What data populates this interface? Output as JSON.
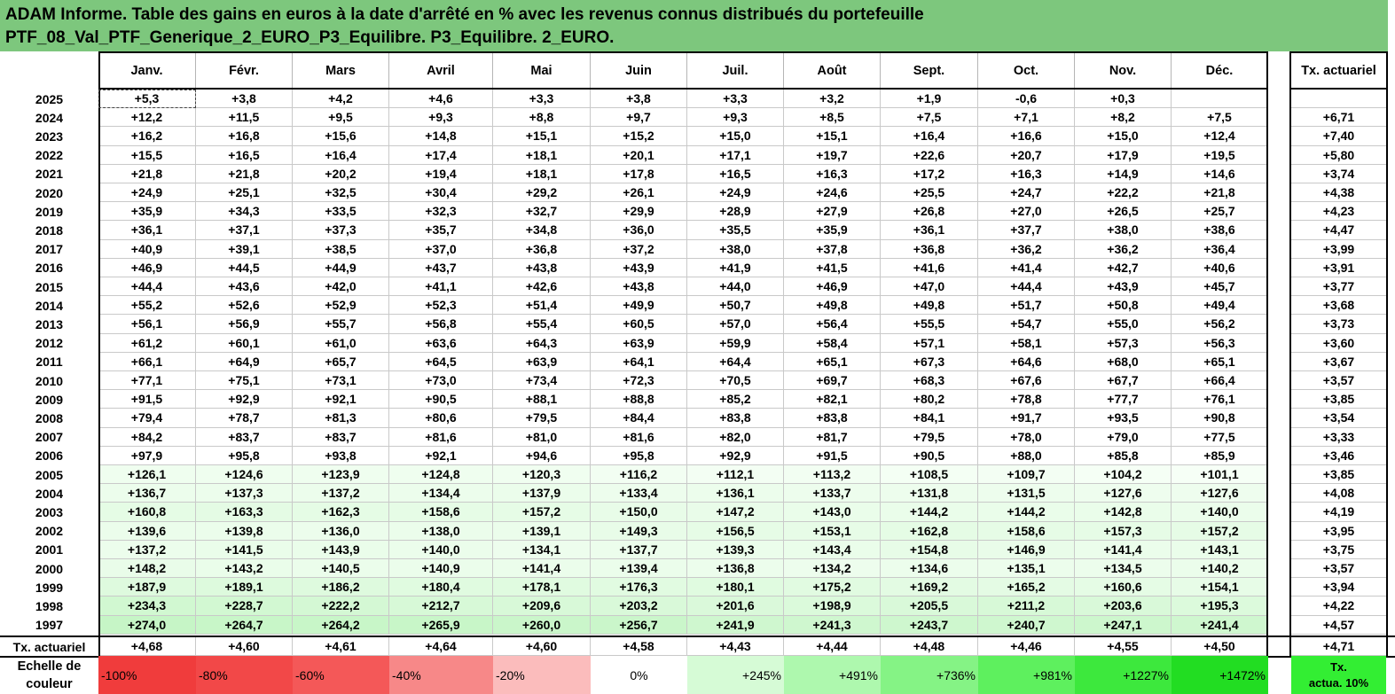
{
  "title": {
    "line1": "ADAM Informe. Table des gains en euros à la date d'arrêté en % avec les revenus connus distribués du portefeuille",
    "line2": "PTF_08_Val_PTF_Generique_2_EURO_P3_Equilibre. P3_Equilibre. 2_EURO."
  },
  "months": [
    "Janv.",
    "Févr.",
    "Mars",
    "Avril",
    "Mai",
    "Juin",
    "Juil.",
    "Août",
    "Sept.",
    "Oct.",
    "Nov.",
    "Déc."
  ],
  "tx_header": "Tx. actuariel",
  "rows": [
    {
      "year": "2025",
      "v": [
        "+5,3",
        "+3,8",
        "+4,2",
        "+4,6",
        "+3,3",
        "+3,8",
        "+3,3",
        "+3,2",
        "+1,9",
        "-0,6",
        "+0,3",
        ""
      ],
      "tx": ""
    },
    {
      "year": "2024",
      "v": [
        "+12,2",
        "+11,5",
        "+9,5",
        "+9,3",
        "+8,8",
        "+9,7",
        "+9,3",
        "+8,5",
        "+7,5",
        "+7,1",
        "+8,2",
        "+7,5"
      ],
      "tx": "+6,71"
    },
    {
      "year": "2023",
      "v": [
        "+16,2",
        "+16,8",
        "+15,6",
        "+14,8",
        "+15,1",
        "+15,2",
        "+15,0",
        "+15,1",
        "+16,4",
        "+16,6",
        "+15,0",
        "+12,4"
      ],
      "tx": "+7,40"
    },
    {
      "year": "2022",
      "v": [
        "+15,5",
        "+16,5",
        "+16,4",
        "+17,4",
        "+18,1",
        "+20,1",
        "+17,1",
        "+19,7",
        "+22,6",
        "+20,7",
        "+17,9",
        "+19,5"
      ],
      "tx": "+5,80"
    },
    {
      "year": "2021",
      "v": [
        "+21,8",
        "+21,8",
        "+20,2",
        "+19,4",
        "+18,1",
        "+17,8",
        "+16,5",
        "+16,3",
        "+17,2",
        "+16,3",
        "+14,9",
        "+14,6"
      ],
      "tx": "+3,74"
    },
    {
      "year": "2020",
      "v": [
        "+24,9",
        "+25,1",
        "+32,5",
        "+30,4",
        "+29,2",
        "+26,1",
        "+24,9",
        "+24,6",
        "+25,5",
        "+24,7",
        "+22,2",
        "+21,8"
      ],
      "tx": "+4,38"
    },
    {
      "year": "2019",
      "v": [
        "+35,9",
        "+34,3",
        "+33,5",
        "+32,3",
        "+32,7",
        "+29,9",
        "+28,9",
        "+27,9",
        "+26,8",
        "+27,0",
        "+26,5",
        "+25,7"
      ],
      "tx": "+4,23"
    },
    {
      "year": "2018",
      "v": [
        "+36,1",
        "+37,1",
        "+37,3",
        "+35,7",
        "+34,8",
        "+36,0",
        "+35,5",
        "+35,9",
        "+36,1",
        "+37,7",
        "+38,0",
        "+38,6"
      ],
      "tx": "+4,47"
    },
    {
      "year": "2017",
      "v": [
        "+40,9",
        "+39,1",
        "+38,5",
        "+37,0",
        "+36,8",
        "+37,2",
        "+38,0",
        "+37,8",
        "+36,8",
        "+36,2",
        "+36,2",
        "+36,4"
      ],
      "tx": "+3,99"
    },
    {
      "year": "2016",
      "v": [
        "+46,9",
        "+44,5",
        "+44,9",
        "+43,7",
        "+43,8",
        "+43,9",
        "+41,9",
        "+41,5",
        "+41,6",
        "+41,4",
        "+42,7",
        "+40,6"
      ],
      "tx": "+3,91"
    },
    {
      "year": "2015",
      "v": [
        "+44,4",
        "+43,6",
        "+42,0",
        "+41,1",
        "+42,6",
        "+43,8",
        "+44,0",
        "+46,9",
        "+47,0",
        "+44,4",
        "+43,9",
        "+45,7"
      ],
      "tx": "+3,77"
    },
    {
      "year": "2014",
      "v": [
        "+55,2",
        "+52,6",
        "+52,9",
        "+52,3",
        "+51,4",
        "+49,9",
        "+50,7",
        "+49,8",
        "+49,8",
        "+51,7",
        "+50,8",
        "+49,4"
      ],
      "tx": "+3,68"
    },
    {
      "year": "2013",
      "v": [
        "+56,1",
        "+56,9",
        "+55,7",
        "+56,8",
        "+55,4",
        "+60,5",
        "+57,0",
        "+56,4",
        "+55,5",
        "+54,7",
        "+55,0",
        "+56,2"
      ],
      "tx": "+3,73"
    },
    {
      "year": "2012",
      "v": [
        "+61,2",
        "+60,1",
        "+61,0",
        "+63,6",
        "+64,3",
        "+63,9",
        "+59,9",
        "+58,4",
        "+57,1",
        "+58,1",
        "+57,3",
        "+56,3"
      ],
      "tx": "+3,60"
    },
    {
      "year": "2011",
      "v": [
        "+66,1",
        "+64,9",
        "+65,7",
        "+64,5",
        "+63,9",
        "+64,1",
        "+64,4",
        "+65,1",
        "+67,3",
        "+64,6",
        "+68,0",
        "+65,1"
      ],
      "tx": "+3,67"
    },
    {
      "year": "2010",
      "v": [
        "+77,1",
        "+75,1",
        "+73,1",
        "+73,0",
        "+73,4",
        "+72,3",
        "+70,5",
        "+69,7",
        "+68,3",
        "+67,6",
        "+67,7",
        "+66,4"
      ],
      "tx": "+3,57"
    },
    {
      "year": "2009",
      "v": [
        "+91,5",
        "+92,9",
        "+92,1",
        "+90,5",
        "+88,1",
        "+88,8",
        "+85,2",
        "+82,1",
        "+80,2",
        "+78,8",
        "+77,7",
        "+76,1"
      ],
      "tx": "+3,85"
    },
    {
      "year": "2008",
      "v": [
        "+79,4",
        "+78,7",
        "+81,3",
        "+80,6",
        "+79,5",
        "+84,4",
        "+83,8",
        "+83,8",
        "+84,1",
        "+91,7",
        "+93,5",
        "+90,8"
      ],
      "tx": "+3,54"
    },
    {
      "year": "2007",
      "v": [
        "+84,2",
        "+83,7",
        "+83,7",
        "+81,6",
        "+81,0",
        "+81,6",
        "+82,0",
        "+81,7",
        "+79,5",
        "+78,0",
        "+79,0",
        "+77,5"
      ],
      "tx": "+3,33"
    },
    {
      "year": "2006",
      "v": [
        "+97,9",
        "+95,8",
        "+93,8",
        "+92,1",
        "+94,6",
        "+95,8",
        "+92,9",
        "+91,5",
        "+90,5",
        "+88,0",
        "+85,8",
        "+85,9"
      ],
      "tx": "+3,46"
    },
    {
      "year": "2005",
      "v": [
        "+126,1",
        "+124,6",
        "+123,9",
        "+124,8",
        "+120,3",
        "+116,2",
        "+112,1",
        "+113,2",
        "+108,5",
        "+109,7",
        "+104,2",
        "+101,1"
      ],
      "tx": "+3,85"
    },
    {
      "year": "2004",
      "v": [
        "+136,7",
        "+137,3",
        "+137,2",
        "+134,4",
        "+137,9",
        "+133,4",
        "+136,1",
        "+133,7",
        "+131,8",
        "+131,5",
        "+127,6",
        "+127,6"
      ],
      "tx": "+4,08"
    },
    {
      "year": "2003",
      "v": [
        "+160,8",
        "+163,3",
        "+162,3",
        "+158,6",
        "+157,2",
        "+150,0",
        "+147,2",
        "+143,0",
        "+144,2",
        "+144,2",
        "+142,8",
        "+140,0"
      ],
      "tx": "+4,19"
    },
    {
      "year": "2002",
      "v": [
        "+139,6",
        "+139,8",
        "+136,0",
        "+138,0",
        "+139,1",
        "+149,3",
        "+156,5",
        "+153,1",
        "+162,8",
        "+158,6",
        "+157,3",
        "+157,2"
      ],
      "tx": "+3,95"
    },
    {
      "year": "2001",
      "v": [
        "+137,2",
        "+141,5",
        "+143,9",
        "+140,0",
        "+134,1",
        "+137,7",
        "+139,3",
        "+143,4",
        "+154,8",
        "+146,9",
        "+141,4",
        "+143,1"
      ],
      "tx": "+3,75"
    },
    {
      "year": "2000",
      "v": [
        "+148,2",
        "+143,2",
        "+140,5",
        "+140,9",
        "+141,4",
        "+139,4",
        "+136,8",
        "+134,2",
        "+134,6",
        "+135,1",
        "+134,5",
        "+140,2"
      ],
      "tx": "+3,57"
    },
    {
      "year": "1999",
      "v": [
        "+187,9",
        "+189,1",
        "+186,2",
        "+180,4",
        "+178,1",
        "+176,3",
        "+180,1",
        "+175,2",
        "+169,2",
        "+165,2",
        "+160,6",
        "+154,1"
      ],
      "tx": "+3,94"
    },
    {
      "year": "1998",
      "v": [
        "+234,3",
        "+228,7",
        "+222,2",
        "+212,7",
        "+209,6",
        "+203,2",
        "+201,6",
        "+198,9",
        "+205,5",
        "+211,2",
        "+203,6",
        "+195,3"
      ],
      "tx": "+4,22"
    },
    {
      "year": "1997",
      "v": [
        "+274,0",
        "+264,7",
        "+264,2",
        "+265,9",
        "+260,0",
        "+256,7",
        "+241,9",
        "+241,3",
        "+243,7",
        "+240,7",
        "+247,1",
        "+241,4"
      ],
      "tx": "+4,57"
    }
  ],
  "avg_row": {
    "label": "Tx. actuariel",
    "v": [
      "+4,68",
      "+4,60",
      "+4,61",
      "+4,64",
      "+4,60",
      "+4,58",
      "+4,43",
      "+4,44",
      "+4,48",
      "+4,46",
      "+4,55",
      "+4,50"
    ],
    "tx": "+4,71"
  },
  "scale": {
    "label_line1": "Echelle de",
    "label_line2": "couleur",
    "items": [
      {
        "text": "-100%",
        "color": "#f03c3c",
        "align": "left"
      },
      {
        "text": "-80%",
        "color": "#f24848",
        "align": "left"
      },
      {
        "text": "-60%",
        "color": "#f45858",
        "align": "left"
      },
      {
        "text": "-40%",
        "color": "#f78888",
        "align": "left"
      },
      {
        "text": "-20%",
        "color": "#fbbcbc",
        "align": "left"
      },
      {
        "text": "0%",
        "color": "#ffffff",
        "align": "center"
      },
      {
        "text": "+245%",
        "color": "#d6fbd6",
        "align": "right"
      },
      {
        "text": "+491%",
        "color": "#aef8ae",
        "align": "right"
      },
      {
        "text": "+736%",
        "color": "#85f385",
        "align": "right"
      },
      {
        "text": "+981%",
        "color": "#5ef05e",
        "align": "right"
      },
      {
        "text": "+1227%",
        "color": "#3de83d",
        "align": "right"
      },
      {
        "text": "+1472%",
        "color": "#22dd22",
        "align": "right"
      }
    ],
    "tx_line1": "Tx.",
    "tx_line2": "actua. 10%"
  },
  "colors": {
    "title_bg": "#7dc77d",
    "tint_low": "#f6fff6",
    "tint_high": "#c4f5c4",
    "tx_scale_bg": "#33ee33"
  }
}
